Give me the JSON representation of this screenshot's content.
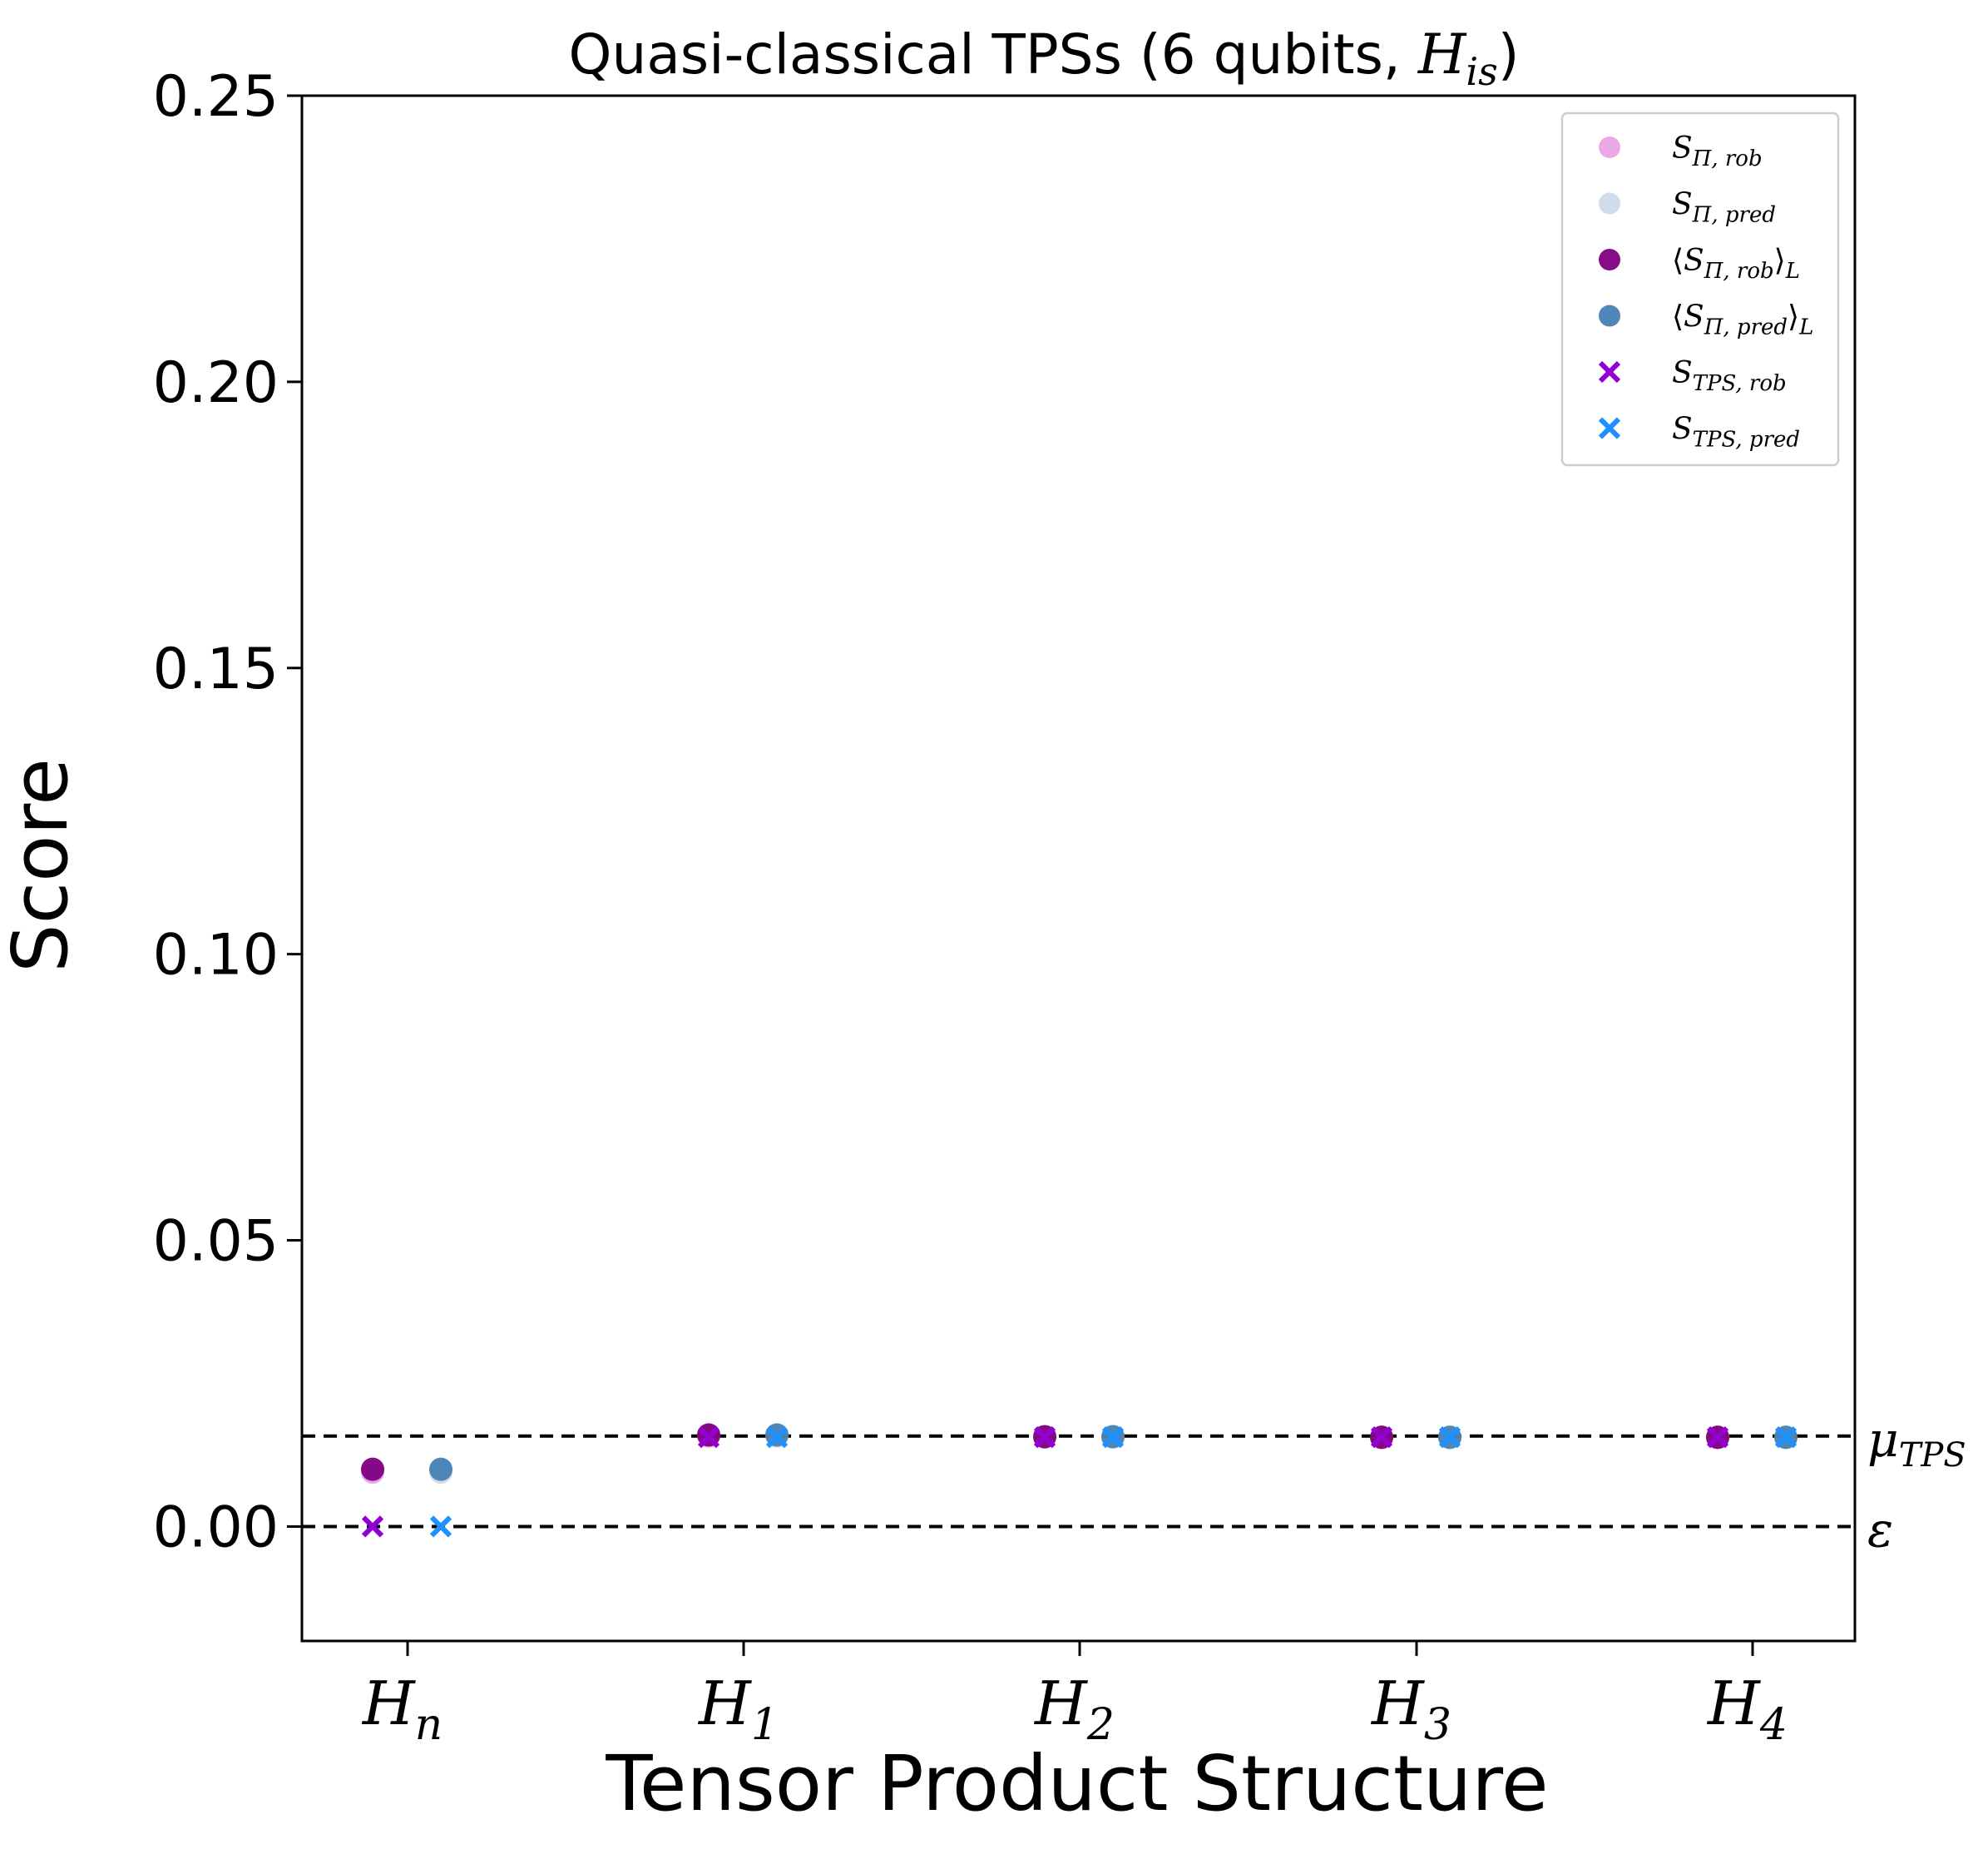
{
  "chart_data": {
    "type": "scatter",
    "title": {
      "prefix": "Quasi-classical TPSs (6 qubits, ",
      "math_base": "H",
      "math_sub": "is",
      "suffix": ")"
    },
    "xlabel": "Tensor Product Structure",
    "ylabel": "Score",
    "categories": [
      {
        "base": "H",
        "sub": "n"
      },
      {
        "base": "H",
        "sub": "1"
      },
      {
        "base": "H",
        "sub": "2"
      },
      {
        "base": "H",
        "sub": "3"
      },
      {
        "base": "H",
        "sub": "4"
      }
    ],
    "ylim": [
      -0.02,
      0.25
    ],
    "yticks": [
      "0.00",
      "0.05",
      "0.10",
      "0.15",
      "0.20",
      "0.25"
    ],
    "ytick_values": [
      0.0,
      0.05,
      0.1,
      0.15,
      0.2,
      0.25
    ],
    "grid": false,
    "legend_position": "top-right",
    "series": [
      {
        "name": "S_{Π,rob}",
        "group": "rob",
        "marker": "circle-light",
        "color": "#da70d6",
        "values": [
          0.0095,
          0.0158,
          0.0156,
          0.0155,
          0.0155
        ]
      },
      {
        "name": "S_{Π,pred}",
        "group": "pred",
        "marker": "circle-light",
        "color": "#b0c4de",
        "values": [
          0.0095,
          0.0158,
          0.0156,
          0.0155,
          0.0155
        ]
      },
      {
        "name": "⟨S_{Π,rob}⟩_L",
        "group": "rob",
        "marker": "circle",
        "color": "#800080",
        "values": [
          0.01,
          0.016,
          0.0157,
          0.0156,
          0.0156
        ]
      },
      {
        "name": "⟨S_{Π,pred}⟩_L",
        "group": "pred",
        "marker": "circle",
        "color": "#4682b4",
        "values": [
          0.01,
          0.016,
          0.0157,
          0.0156,
          0.0156
        ]
      },
      {
        "name": "S_{TPS,rob}",
        "group": "rob",
        "marker": "x",
        "color": "#9400d3",
        "values": [
          0.0,
          0.0156,
          0.0156,
          0.0156,
          0.0156
        ]
      },
      {
        "name": "S_{TPS,pred}",
        "group": "pred",
        "marker": "x",
        "color": "#1e90ff",
        "values": [
          0.0,
          0.0156,
          0.0156,
          0.0156,
          0.0156
        ]
      }
    ],
    "hlines": [
      {
        "label_base": "μ",
        "label_sub": "TPS",
        "value": 0.0158
      },
      {
        "label_base": "ε",
        "label_sub": "",
        "value": 0.0
      }
    ],
    "legend": [
      {
        "base": "S",
        "sub": "Π, rob",
        "pre": "",
        "post": "",
        "post_sub": "",
        "marker": "circle-light",
        "color": "#da70d6"
      },
      {
        "base": "S",
        "sub": "Π, pred",
        "pre": "",
        "post": "",
        "post_sub": "",
        "marker": "circle-light",
        "color": "#b0c4de"
      },
      {
        "base": "S",
        "sub": "Π, rob",
        "pre": "⟨",
        "post": "⟩",
        "post_sub": "L",
        "marker": "circle",
        "color": "#800080"
      },
      {
        "base": "S",
        "sub": "Π, pred",
        "pre": "⟨",
        "post": "⟩",
        "post_sub": "L",
        "marker": "circle",
        "color": "#4682b4"
      },
      {
        "base": "S",
        "sub": "TPS, rob",
        "pre": "",
        "post": "",
        "post_sub": "",
        "marker": "x",
        "color": "#9400d3"
      },
      {
        "base": "S",
        "sub": "TPS, pred",
        "pre": "",
        "post": "",
        "post_sub": "",
        "marker": "x",
        "color": "#1e90ff"
      }
    ]
  }
}
